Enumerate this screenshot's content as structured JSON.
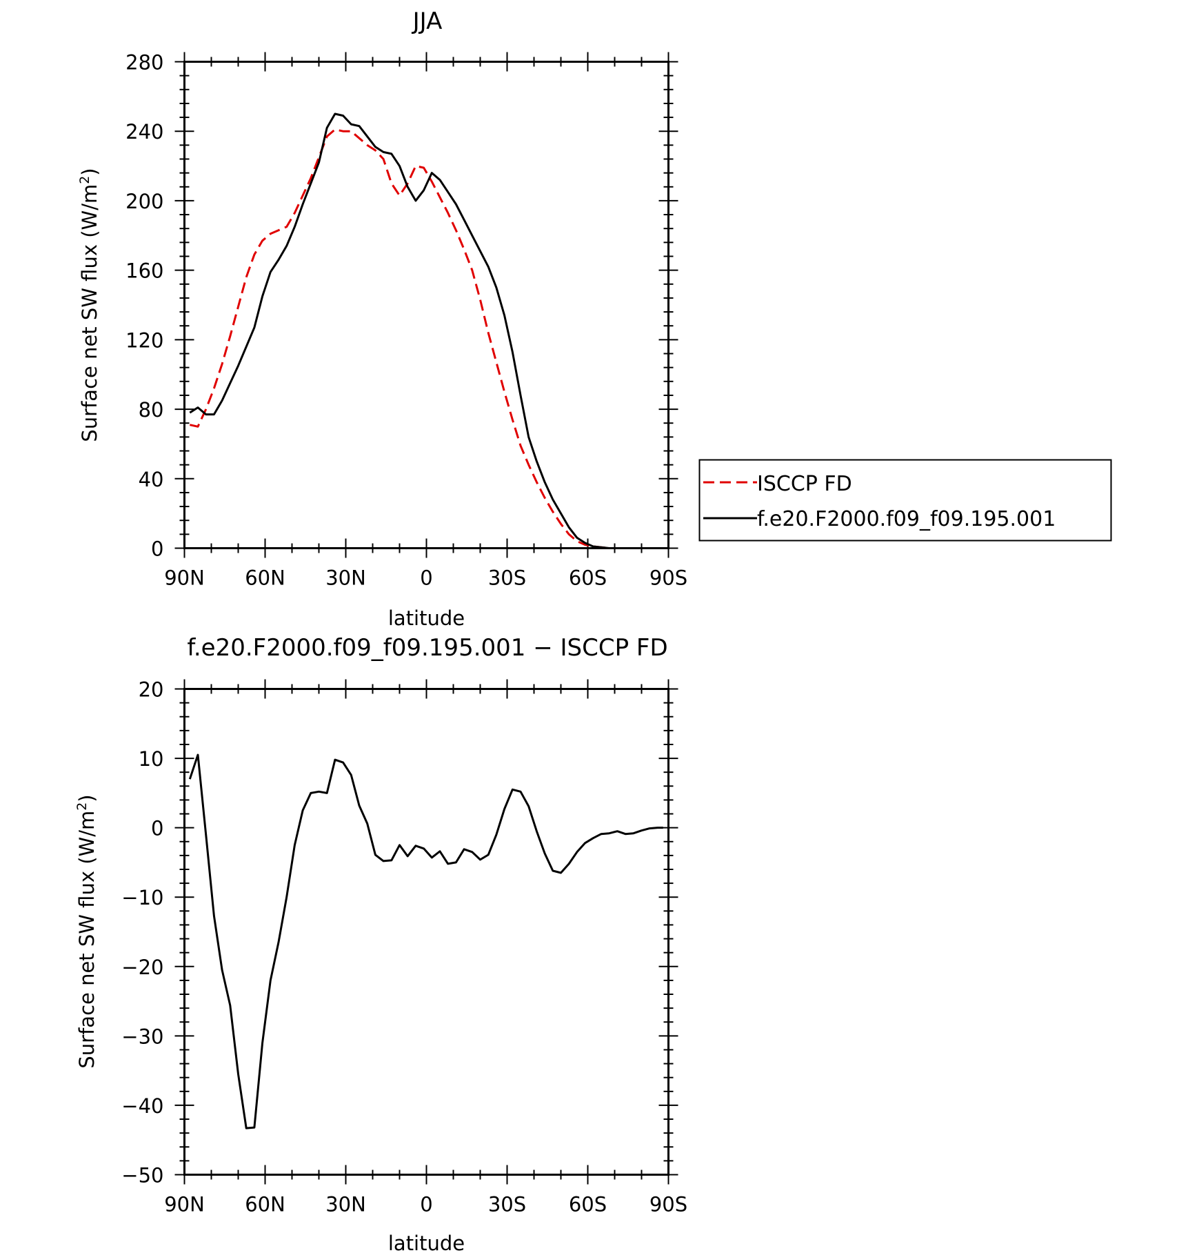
{
  "chart_data": [
    {
      "type": "line",
      "title": "JJA",
      "xlabel": "latitude",
      "ylabel": "Surface net SW flux (W/m²)",
      "ylabel_main": "Surface net SW flux (W/m",
      "ylabel_sup": "2",
      "ylabel_close": ")",
      "x_ticks": [
        90,
        60,
        30,
        0,
        -30,
        -60,
        -90
      ],
      "x_tick_labels": [
        "90N",
        "60N",
        "30N",
        "0",
        "30S",
        "60S",
        "90S"
      ],
      "xlim": [
        90,
        -90
      ],
      "ylim": [
        0,
        280
      ],
      "y_ticks": [
        0,
        40,
        80,
        120,
        160,
        200,
        240,
        280
      ],
      "y_tick_labels": [
        "0",
        "40",
        "80",
        "120",
        "160",
        "200",
        "240",
        "280"
      ],
      "grid": false,
      "legend_position": "right",
      "series": [
        {
          "name": "ISCCP FD",
          "color": "#e00000",
          "dash": "dashed",
          "x": [
            88,
            85,
            82,
            79,
            76,
            73,
            70,
            67,
            64,
            61,
            58,
            55,
            52,
            49,
            46,
            43,
            40,
            37,
            34,
            31,
            28,
            25,
            22,
            19,
            16,
            13,
            10,
            7,
            4,
            1,
            -2,
            -5,
            -8,
            -11,
            -14,
            -17,
            -20,
            -23,
            -26,
            -29,
            -32,
            -35,
            -38,
            -41,
            -44,
            -47,
            -50,
            -53,
            -56,
            -59,
            -62,
            -65,
            -68,
            -71,
            -74,
            -77,
            -80,
            -83,
            -86,
            -88
          ],
          "y": [
            71,
            70,
            80,
            92,
            106,
            122,
            139,
            156,
            169,
            177,
            181,
            183,
            185,
            193,
            203,
            213,
            225,
            237,
            241,
            240,
            240,
            236,
            232,
            229,
            224,
            210,
            203,
            210,
            220,
            219,
            211,
            202,
            193,
            183,
            172,
            160,
            143,
            124,
            107,
            90,
            74,
            59,
            48,
            38,
            29,
            21,
            14,
            8,
            4,
            2,
            1,
            0.5,
            0,
            0,
            0,
            0,
            0,
            0,
            0,
            0
          ]
        },
        {
          "name": "f.e20.F2000.f09_f09.195.001",
          "color": "#000000",
          "dash": "solid",
          "x": [
            88,
            85,
            82,
            79,
            76,
            73,
            70,
            67,
            64,
            61,
            58,
            55,
            52,
            49,
            46,
            43,
            40,
            37,
            34,
            31,
            28,
            25,
            22,
            19,
            16,
            13,
            10,
            7,
            4,
            1,
            -2,
            -5,
            -8,
            -11,
            -14,
            -17,
            -20,
            -23,
            -26,
            -29,
            -32,
            -35,
            -38,
            -41,
            -44,
            -47,
            -50,
            -53,
            -56,
            -59,
            -62,
            -65,
            -68,
            -71,
            -74,
            -77,
            -80,
            -83,
            -86,
            -88
          ],
          "y": [
            78,
            81,
            77,
            77,
            85,
            95,
            105,
            116,
            127,
            145,
            159,
            166,
            174,
            185,
            198,
            210,
            222,
            242,
            250,
            249,
            244,
            243,
            237,
            231,
            228,
            227,
            220,
            208,
            200,
            206,
            216,
            212,
            205,
            198,
            189,
            180,
            171,
            162,
            150,
            134,
            113,
            88,
            64,
            50,
            38,
            28,
            20,
            12,
            6,
            3,
            1,
            0.5,
            0,
            0,
            0,
            0,
            0,
            0,
            0,
            0
          ]
        }
      ]
    },
    {
      "type": "line",
      "title": "f.e20.F2000.f09_f09.195.001 − ISCCP FD",
      "xlabel": "latitude",
      "ylabel": "Surface net SW flux (W/m²)",
      "ylabel_main": "Surface net SW flux (W/m",
      "ylabel_sup": "2",
      "ylabel_close": ")",
      "x_ticks": [
        90,
        60,
        30,
        0,
        -30,
        -60,
        -90
      ],
      "x_tick_labels": [
        "90N",
        "60N",
        "30N",
        "0",
        "30S",
        "60S",
        "90S"
      ],
      "xlim": [
        90,
        -90
      ],
      "ylim": [
        -50,
        20
      ],
      "y_ticks": [
        -50,
        -40,
        -30,
        -20,
        -10,
        0,
        10,
        20
      ],
      "y_tick_labels": [
        "−50",
        "−40",
        "−30",
        "−20",
        "−10",
        "0",
        "10",
        "20"
      ],
      "grid": false,
      "series": [
        {
          "color": "#000000",
          "dash": "solid",
          "x": [
            88,
            85,
            82,
            79,
            76,
            73,
            70,
            67,
            64,
            61,
            58,
            55,
            52,
            49,
            46,
            43,
            40,
            37,
            34,
            31,
            28,
            25,
            22,
            19,
            16,
            13,
            10,
            7,
            4,
            1,
            -2,
            -5,
            -8,
            -11,
            -14,
            -17,
            -20,
            -23,
            -26,
            -29,
            -32,
            -35,
            -38,
            -41,
            -44,
            -47,
            -50,
            -53,
            -56,
            -59,
            -62,
            -65,
            -68,
            -71,
            -74,
            -77,
            -80,
            -83,
            -86,
            -88
          ],
          "y": [
            7,
            10.5,
            -1,
            -12.7,
            -20.5,
            -25.6,
            -35.5,
            -43.3,
            -43.2,
            -31,
            -22,
            -16.5,
            -10,
            -2.5,
            2.5,
            5,
            5.2,
            5,
            9.8,
            9.4,
            7.6,
            3.2,
            0.6,
            -3.9,
            -4.8,
            -4.7,
            -2.5,
            -4.1,
            -2.6,
            -3,
            -4.3,
            -3.4,
            -5.2,
            -5,
            -3.1,
            -3.5,
            -4.6,
            -3.9,
            -1,
            2.7,
            5.5,
            5.2,
            3.1,
            -0.5,
            -3.7,
            -6.2,
            -6.5,
            -5.2,
            -3.5,
            -2.2,
            -1.5,
            -0.9,
            -0.8,
            -0.5,
            -0.9,
            -0.8,
            -0.4,
            -0.1,
            0,
            0
          ]
        }
      ]
    }
  ]
}
